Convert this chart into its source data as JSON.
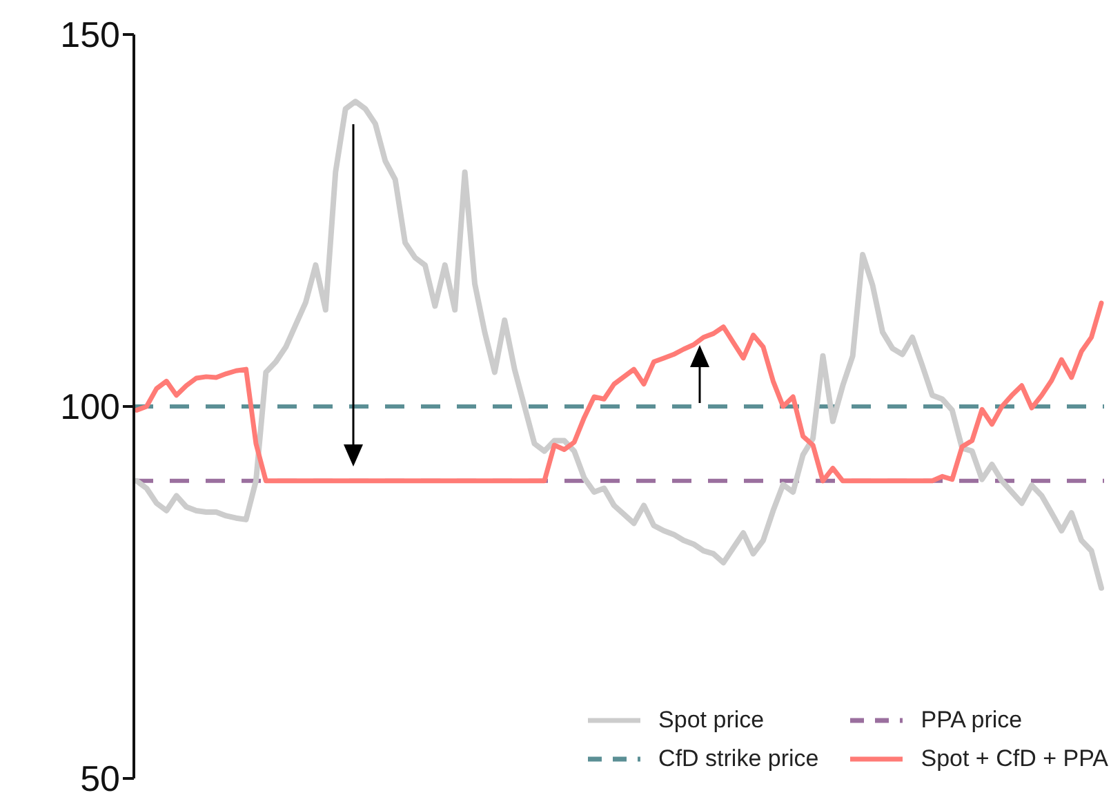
{
  "chart_data": {
    "type": "line",
    "categories": [
      null,
      null,
      null,
      null,
      null,
      null,
      null,
      null,
      null,
      null,
      null,
      null,
      null,
      null,
      null,
      null,
      null,
      null,
      null,
      null,
      null,
      null,
      null,
      null,
      null,
      null,
      null,
      null,
      null,
      null,
      null,
      null,
      null,
      null,
      null,
      null,
      null,
      null,
      null,
      null,
      null,
      null,
      null,
      null,
      null,
      null,
      null,
      null,
      null,
      null,
      null,
      null,
      null,
      null,
      null,
      null,
      null,
      null,
      null,
      null,
      null,
      null,
      null,
      null,
      null,
      null,
      null,
      null,
      null,
      null,
      null,
      null,
      null,
      null,
      null,
      null,
      null,
      null,
      null,
      null,
      null,
      null,
      null,
      null,
      null,
      null,
      null,
      null,
      null,
      null,
      null,
      null,
      null,
      null,
      null,
      null,
      null,
      null
    ],
    "series": [
      {
        "name": "Spot price",
        "color": "#cccccc",
        "values": [
          90,
          89,
          87,
          86,
          88,
          86.5,
          86,
          85.8,
          85.8,
          85.3,
          85,
          84.8,
          90,
          104.6,
          106,
          108,
          111,
          114,
          119,
          113,
          131.5,
          140,
          141,
          140,
          138,
          133,
          130.5,
          122,
          120,
          119,
          113.5,
          119,
          113,
          131.5,
          116.5,
          110,
          104.6,
          111.6,
          105,
          100,
          95,
          94,
          95.4,
          95.4,
          94,
          90.4,
          88.5,
          89,
          86.7,
          85.5,
          84.3,
          86.7,
          84,
          83.3,
          82.8,
          82,
          81.5,
          80.6,
          80.2,
          79,
          81,
          83,
          80.2,
          82,
          86,
          89.5,
          88.5,
          93.5,
          95.7,
          106.8,
          98,
          102.8,
          106.8,
          120.4,
          116.3,
          110,
          107.8,
          107,
          109.3,
          105.5,
          101.5,
          101,
          99.5,
          94.4,
          94,
          90.2,
          92.2,
          90,
          88.5,
          87,
          89.4,
          88,
          85.7,
          83.3,
          85.7,
          82,
          80.6,
          75.6
        ]
      },
      {
        "name": "Spot + CfD + PPA",
        "color": "#ff7b76",
        "values": [
          99.5,
          100,
          102.4,
          103.4,
          101.5,
          102.8,
          103.8,
          104,
          103.9,
          104.4,
          104.8,
          105,
          95,
          90,
          90,
          90,
          90,
          90,
          90,
          90,
          90,
          90,
          90,
          90,
          90,
          90,
          90,
          90,
          90,
          90,
          90,
          90,
          90,
          90,
          90,
          90,
          90,
          90,
          90,
          90,
          90,
          90,
          94.8,
          94.2,
          95.2,
          98.5,
          101.3,
          101,
          103,
          104,
          105,
          103,
          106,
          106.5,
          107,
          107.7,
          108.3,
          109.3,
          109.8,
          110.7,
          108.6,
          106.5,
          109.6,
          108,
          103.4,
          100,
          101.3,
          96,
          94.8,
          90,
          91.7,
          90,
          90,
          90,
          90,
          90,
          90,
          90,
          90,
          90,
          90,
          90.6,
          90.2,
          94.6,
          95.4,
          99.6,
          97.6,
          100,
          101.5,
          102.8,
          99.8,
          101.5,
          103.5,
          106.3,
          103.9,
          107.4,
          109.3,
          113.9
        ]
      }
    ],
    "ref_lines": [
      {
        "axis": "y",
        "value": 90,
        "label": "PPA price",
        "color": "#9a6f9e",
        "line_style": "dashed"
      },
      {
        "axis": "y",
        "value": 100,
        "label": "CfD strike price",
        "color": "#5b8f95",
        "line_style": "dashed"
      }
    ],
    "ylim": [
      50,
      150
    ],
    "yticks": [
      50,
      100,
      150
    ],
    "tick_labels": "y",
    "grid": false,
    "legend": "bottom right",
    "marker": "none",
    "line_style": "solid"
  }
}
